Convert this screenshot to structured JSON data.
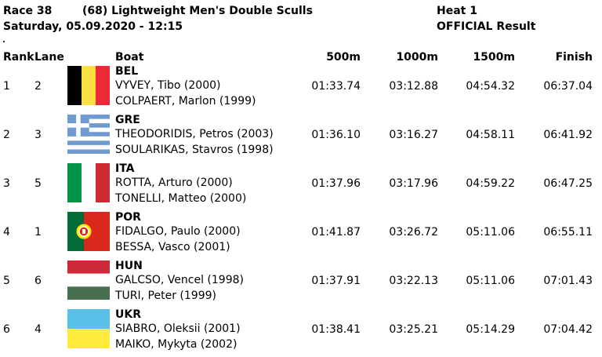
{
  "header": {
    "race": "Race 38",
    "event": "(68) Lightweight Men's Double Sculls",
    "heat": "Heat 1",
    "datetime": "Saturday, 05.09.2020 - 12:15",
    "status": "OFFICIAL Result"
  },
  "columns": {
    "rank": "Rank",
    "lane": "Lane",
    "boat": "Boat",
    "split1": "500m",
    "split2": "1000m",
    "split3": "1500m",
    "finish": "Finish"
  },
  "results": [
    {
      "rank": "1",
      "lane": "2",
      "country": "BEL",
      "flag": "belgium-flag-icon",
      "rower1": "VYVEY, Tibo (2000)",
      "rower2": "COLPAERT, Marlon (1999)",
      "t500": "01:33.74",
      "t1000": "03:12.88",
      "t1500": "04:54.32",
      "finish": "06:37.04"
    },
    {
      "rank": "2",
      "lane": "3",
      "country": "GRE",
      "flag": "greece-flag-icon",
      "rower1": "THEODORIDIS, Petros (2003)",
      "rower2": "SOULARIKAS, Stavros (1998)",
      "t500": "01:36.10",
      "t1000": "03:16.27",
      "t1500": "04:58.11",
      "finish": "06:41.92"
    },
    {
      "rank": "3",
      "lane": "5",
      "country": "ITA",
      "flag": "italy-flag-icon",
      "rower1": "ROTTA, Arturo (2000)",
      "rower2": "TONELLI, Matteo (2000)",
      "t500": "01:37.96",
      "t1000": "03:17.96",
      "t1500": "04:59.22",
      "finish": "06:47.25"
    },
    {
      "rank": "4",
      "lane": "1",
      "country": "POR",
      "flag": "portugal-flag-icon",
      "rower1": "FIDALGO, Paulo (2000)",
      "rower2": "BESSA, Vasco (2001)",
      "t500": "01:41.87",
      "t1000": "03:26.72",
      "t1500": "05:11.06",
      "finish": "06:55.11"
    },
    {
      "rank": "5",
      "lane": "6",
      "country": "HUN",
      "flag": "hungary-flag-icon",
      "rower1": "GALCSO, Vencel (1998)",
      "rower2": "TURI, Peter (1999)",
      "t500": "01:37.91",
      "t1000": "03:22.13",
      "t1500": "05:11.06",
      "finish": "07:01.43"
    },
    {
      "rank": "6",
      "lane": "4",
      "country": "UKR",
      "flag": "ukraine-flag-icon",
      "rower1": "SIABRO, Oleksii (2001)",
      "rower2": "MAIKO, Mykyta (2002)",
      "t500": "01:38.41",
      "t1000": "03:25.21",
      "t1500": "05:14.29",
      "finish": "07:04.42"
    }
  ]
}
